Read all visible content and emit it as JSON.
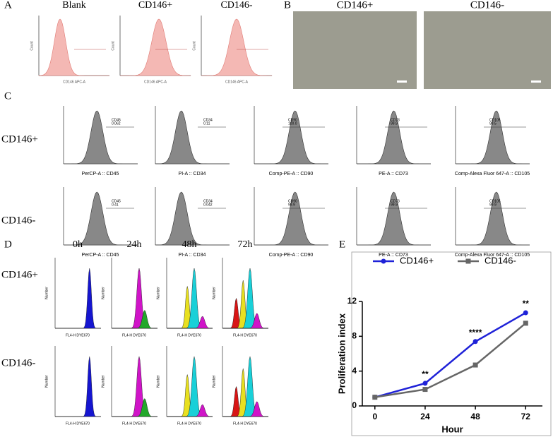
{
  "panels": {
    "A": {
      "label": "A",
      "titles": [
        "Blank",
        "CD146+",
        "CD146-"
      ],
      "x_label": "CD146 APC-A",
      "y_label": "Count"
    },
    "B": {
      "label": "B",
      "titles": [
        "CD146+",
        "CD146-"
      ]
    },
    "C": {
      "label": "C",
      "rows": [
        "CD146+",
        "CD146-"
      ],
      "x_labels": [
        "PerCP-A :: CD45",
        "PI-A :: CD34",
        "Comp-PE-A :: CD90",
        "PE-A :: CD73",
        "Comp-Alexa Fluor 647-A :: CD105"
      ],
      "gates": [
        [
          {
            "marker": "CD45",
            "value": "0.062"
          },
          {
            "marker": "CD34",
            "value": "0.11"
          },
          {
            "marker": "CD90",
            "value": "100.0"
          },
          {
            "marker": "CD73",
            "value": "99.9"
          },
          {
            "marker": "CD105",
            "value": "99.5"
          }
        ],
        [
          {
            "marker": "CD45",
            "value": "0.41"
          },
          {
            "marker": "CD34",
            "value": "0.042"
          },
          {
            "marker": "CD90",
            "value": "99.9"
          },
          {
            "marker": "CD73",
            "value": "99.9"
          },
          {
            "marker": "CD105",
            "value": "99.9"
          }
        ]
      ]
    },
    "D": {
      "label": "D",
      "columns": [
        "0h",
        "24h",
        "48h",
        "72h"
      ],
      "rows": [
        "CD146+",
        "CD146-"
      ],
      "x_label": "FL4-H DYE670",
      "y_label": "Number"
    },
    "E": {
      "label": "E"
    }
  },
  "chart_data": {
    "type": "line",
    "y_label": "Proliferation index",
    "x_label": "Hour",
    "x": [
      0,
      24,
      48,
      72
    ],
    "xlim": [
      -6,
      80
    ],
    "xticks": [
      0,
      24,
      48,
      72
    ],
    "ylim": [
      0,
      12
    ],
    "yticks": [
      0,
      4,
      8,
      12
    ],
    "legend": "top",
    "series": [
      {
        "name": "CD146+",
        "color": "#1f22d8",
        "marker": "circle",
        "values": [
          1,
          2.6,
          7.4,
          10.7
        ]
      },
      {
        "name": "CD146-",
        "color": "#666666",
        "marker": "square",
        "values": [
          1,
          1.9,
          4.7,
          9.5
        ]
      }
    ],
    "annotations": [
      {
        "x": 24,
        "text": "**"
      },
      {
        "x": 48,
        "text": "****"
      },
      {
        "x": 72,
        "text": "**"
      }
    ]
  }
}
